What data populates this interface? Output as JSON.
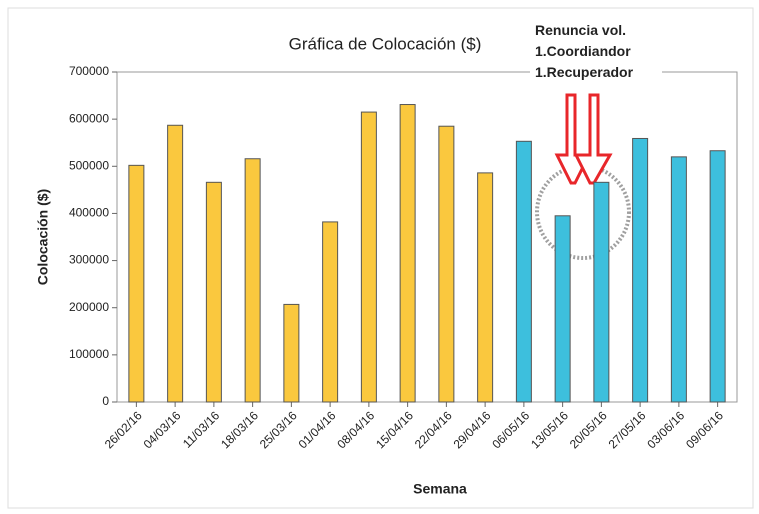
{
  "chart_data": {
    "type": "bar",
    "title": "Gráfica de Colocación ($)",
    "x_label": "Semana",
    "y_label": "Colocación ($)",
    "annotations": [
      "Renuncia vol.",
      "1.Coordiandor",
      "1.Recuperador"
    ],
    "categories": [
      "26/02/16",
      "04/03/16",
      "11/03/16",
      "18/03/16",
      "25/03/16",
      "01/04/16",
      "08/04/16",
      "15/04/16",
      "22/04/16",
      "29/04/16",
      "06/05/16",
      "13/05/16",
      "20/05/16",
      "27/05/16",
      "03/06/16",
      "09/06/16"
    ],
    "values": [
      502000,
      587000,
      466000,
      516000,
      207000,
      382000,
      615000,
      631000,
      585000,
      486000,
      553000,
      395000,
      466000,
      559000,
      520000,
      533000
    ],
    "colors": [
      "#fac83e",
      "#fac83e",
      "#fac83e",
      "#fac83e",
      "#fac83e",
      "#fac83e",
      "#fac83e",
      "#fac83e",
      "#fac83e",
      "#fac83e",
      "#3dbfdd",
      "#3dbfdd",
      "#3dbfdd",
      "#3dbfdd",
      "#3dbfdd",
      "#3dbfdd"
    ],
    "ylim": [
      0,
      700000
    ],
    "yticks": [
      0,
      100000,
      200000,
      300000,
      400000,
      500000,
      600000,
      700000
    ],
    "grid": false
  }
}
